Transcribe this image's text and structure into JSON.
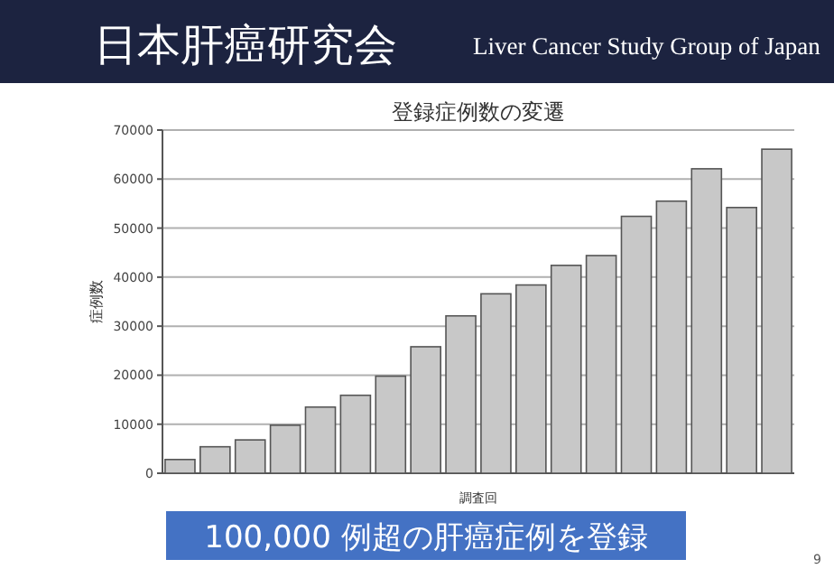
{
  "chart_data": {
    "type": "bar",
    "title": "登録症例数の変遷",
    "ylabel": "症例数",
    "xlabel": "調査回",
    "annotations": [
      "日本肝癌研究会",
      "Liver Cancer Study Group of Japan",
      "100,000 例超の肝癌症例を登録",
      "9"
    ],
    "categories": [
      null,
      null,
      null,
      null,
      null,
      null,
      null,
      null,
      null,
      null,
      null,
      null,
      null,
      null,
      null,
      null,
      null,
      null
    ],
    "values": [
      2800,
      5400,
      6800,
      9800,
      13500,
      15900,
      19800,
      25800,
      32100,
      36600,
      38400,
      42400,
      44400,
      52400,
      55500,
      62100,
      54200,
      66100
    ],
    "color": "#c8c8c8",
    "ylim": [
      0,
      70000
    ],
    "yticks": [
      0,
      10000,
      20000,
      30000,
      40000,
      50000,
      60000,
      70000
    ],
    "grid": "y"
  }
}
